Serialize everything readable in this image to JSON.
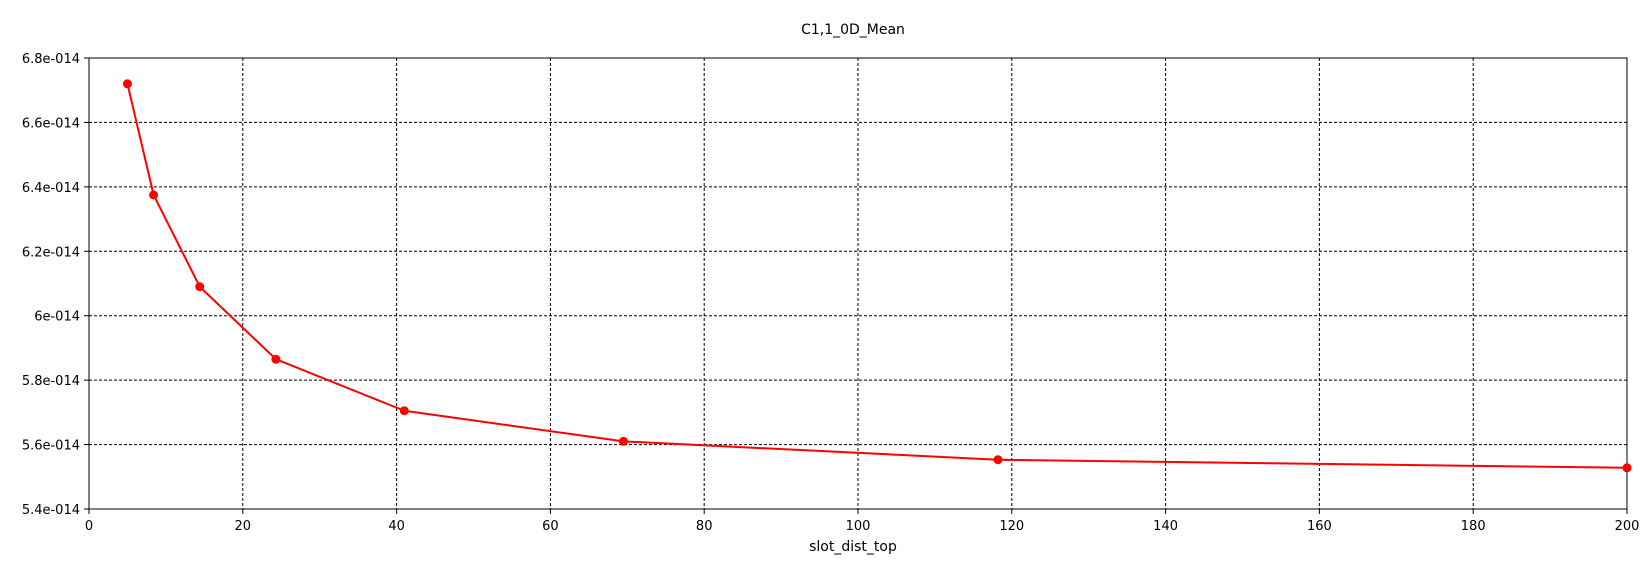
{
  "chart_data": {
    "type": "line",
    "title": "C1,1_0D_Mean",
    "xlabel": "slot_dist_top",
    "ylabel": "",
    "xlim": [
      0,
      200
    ],
    "ylim": [
      5.4e-14,
      6.8e-14
    ],
    "x_ticks": [
      0,
      20,
      40,
      60,
      80,
      100,
      120,
      140,
      160,
      180,
      200
    ],
    "x_tick_labels": [
      "0",
      "20",
      "40",
      "60",
      "80",
      "100",
      "120",
      "140",
      "160",
      "180",
      "200"
    ],
    "y_ticks": [
      5.4e-14,
      5.6e-14,
      5.8e-14,
      6e-14,
      6.2e-14,
      6.4e-14,
      6.6e-14,
      6.8e-14
    ],
    "y_tick_labels": [
      "5.4e-014",
      "5.6e-014",
      "5.8e-014",
      "6e-014",
      "6.2e-014",
      "6.4e-014",
      "6.6e-014",
      "6.8e-014"
    ],
    "grid": true,
    "legend": false,
    "series": [
      {
        "color": "#ff0000",
        "x": [
          5,
          8.4,
          14.4,
          24.3,
          41,
          69.5,
          118.2,
          200
        ],
        "y": [
          6.72e-14,
          6.375e-14,
          6.09e-14,
          5.865e-14,
          5.705e-14,
          5.61e-14,
          5.553e-14,
          5.528e-14
        ]
      }
    ]
  }
}
